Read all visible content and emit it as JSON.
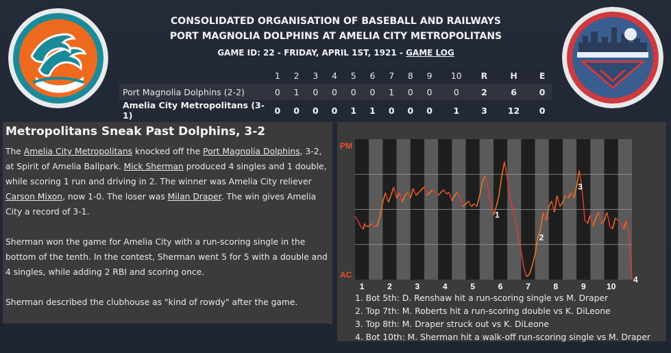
{
  "header": {
    "org": "CONSOLIDATED ORGANISATION OF BASEBALL AND RAILWAYS",
    "matchup": "PORT MAGNOLIA DOLPHINS AT AMELIA CITY METROPOLITANS",
    "game_info": "GAME ID: 22 - FRIDAY, APRIL 1ST, 1921 - ",
    "game_log": "GAME LOG"
  },
  "linescore": {
    "columns": [
      "1",
      "2",
      "3",
      "4",
      "5",
      "6",
      "7",
      "8",
      "9",
      "10",
      "R",
      "H",
      "E"
    ],
    "away": {
      "team": "Port Magnolia Dolphins (2-2)",
      "cells": [
        "0",
        "1",
        "0",
        "0",
        "0",
        "0",
        "1",
        "0",
        "0",
        "0",
        "2",
        "6",
        "0"
      ]
    },
    "home": {
      "team": "Amelia City Metropolitans (3-1)",
      "cells": [
        "0",
        "0",
        "0",
        "0",
        "1",
        "1",
        "0",
        "0",
        "0",
        "1",
        "3",
        "12",
        "0"
      ]
    }
  },
  "story": {
    "title": "Metropolitans Sneak Past Dolphins, 3-2",
    "p1": [
      {
        "t": "The ",
        "link": false
      },
      {
        "t": "Amelia City Metropolitans",
        "link": true
      },
      {
        "t": " knocked off the ",
        "link": false
      },
      {
        "t": "Port Magnolia Dolphins",
        "link": true
      },
      {
        "t": ", 3-2, at Spirit of Amelia Ballpark. ",
        "link": false
      },
      {
        "t": "Mick Sherman",
        "link": true
      },
      {
        "t": " produced 4 singles and 1 double, while scoring 1 run and driving in 2. The winner was Amelia City reliever ",
        "link": false
      },
      {
        "t": "Carson Mixon",
        "link": true
      },
      {
        "t": ", now 1-0. The loser was ",
        "link": false
      },
      {
        "t": "Milan Draper",
        "link": true
      },
      {
        "t": ". The win gives Amelia City a record of 3-1.",
        "link": false
      }
    ],
    "p2": "Sherman won the game for Amelia City with a run-scoring single in the bottom of the tenth. In the contest, Sherman went 5 for 5 with a double and 4 singles, while adding 2 RBI and scoring once.",
    "p3": "Sherman described the clubhouse as \"kind of rowdy\" after the game."
  },
  "colors": {
    "line_up": "#f07a20",
    "line_down": "#e03a3a",
    "label_top": "#e8502a",
    "label_bottom": "#e8502a"
  },
  "chart_data": {
    "type": "line",
    "y_top_label": "PM",
    "y_bottom_label": "AC",
    "innings": [
      "1",
      "2",
      "3",
      "4",
      "5",
      "6",
      "7",
      "8",
      "9",
      "10"
    ],
    "series": [
      {
        "x": [
          0,
          0.1,
          0.2,
          0.3,
          0.35,
          0.4,
          0.5,
          0.6,
          0.7,
          0.8,
          0.9,
          1.0,
          1.1,
          1.2,
          1.3,
          1.4,
          1.5,
          1.6,
          1.7,
          1.8,
          1.9,
          2.0,
          2.1,
          2.2,
          2.3,
          2.4,
          2.5,
          2.6,
          2.7,
          2.8,
          2.9,
          3.0,
          3.1,
          3.2,
          3.3,
          3.4,
          3.5,
          3.6,
          3.7,
          3.8,
          3.9,
          4.0,
          4.1,
          4.2,
          4.3,
          4.4,
          4.5,
          4.6,
          4.7,
          4.8,
          4.9,
          5.0,
          5.1,
          5.2,
          5.3,
          5.4,
          5.5,
          5.6,
          5.7,
          5.8,
          5.9,
          6.0,
          6.1,
          6.2,
          6.3,
          6.4,
          6.5,
          6.6,
          6.7,
          6.8,
          6.9,
          7.0,
          7.1,
          7.2,
          7.3,
          7.4,
          7.5,
          7.6,
          7.7,
          7.8,
          7.9,
          8.0,
          8.1,
          8.2,
          8.3,
          8.4,
          8.5,
          8.6,
          8.7,
          8.8,
          8.9,
          9.0,
          9.1,
          9.2,
          9.3,
          9.4,
          9.5,
          9.6,
          9.7,
          9.8,
          9.9,
          10.0
        ],
        "y": [
          0.45,
          0.42,
          0.38,
          0.36,
          0.4,
          0.38,
          0.38,
          0.4,
          0.38,
          0.38,
          0.45,
          0.55,
          0.62,
          0.55,
          0.6,
          0.66,
          0.58,
          0.62,
          0.55,
          0.6,
          0.62,
          0.58,
          0.65,
          0.6,
          0.62,
          0.64,
          0.66,
          0.6,
          0.62,
          0.64,
          0.62,
          0.6,
          0.62,
          0.64,
          0.61,
          0.62,
          0.56,
          0.6,
          0.62,
          0.58,
          0.52,
          0.54,
          0.56,
          0.52,
          0.54,
          0.52,
          0.6,
          0.7,
          0.74,
          0.66,
          0.54,
          0.46,
          0.52,
          0.6,
          0.74,
          0.84,
          0.72,
          0.58,
          0.5,
          0.42,
          0.3,
          0.2,
          0.08,
          0.02,
          0.04,
          0.1,
          0.18,
          0.3,
          0.36,
          0.48,
          0.42,
          0.52,
          0.56,
          0.48,
          0.6,
          0.52,
          0.55,
          0.6,
          0.58,
          0.62,
          0.58,
          0.66,
          0.78,
          0.64,
          0.42,
          0.4,
          0.46,
          0.38,
          0.44,
          0.48,
          0.4,
          0.42,
          0.48,
          0.38,
          0.36,
          0.44,
          0.42,
          0.4,
          0.36,
          0.42,
          0.32,
          0.0
        ]
      }
    ],
    "events": [
      {
        "label": "1",
        "x": 5.0
      },
      {
        "label": "2",
        "x": 6.6
      },
      {
        "label": "3",
        "x": 8.0
      },
      {
        "label": "4",
        "x": 10.0
      }
    ],
    "notes": [
      "1. Bot 5th: D. Renshaw hit a run-scoring single vs M. Draper",
      "2. Top 7th: M. Roberts hit a run-scoring double vs K. DiLeone",
      "3. Top 8th: M. Draper struck out vs K. DiLeone",
      "4. Bot 10th: M. Sherman hit a walk-off run-scoring single vs M. Draper"
    ]
  }
}
